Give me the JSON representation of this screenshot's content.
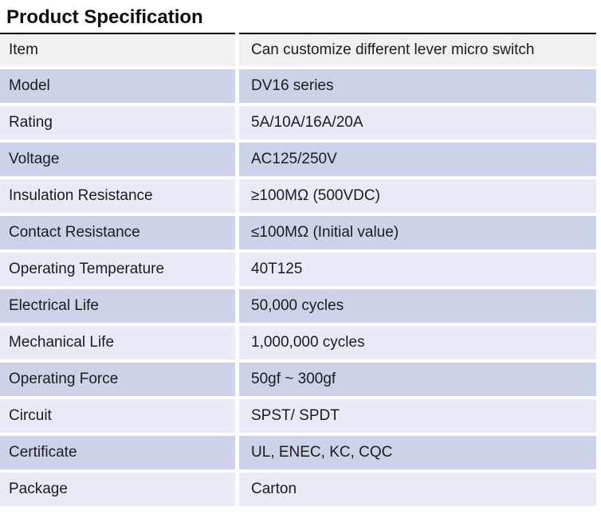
{
  "page": {
    "title": "Product Specification"
  },
  "table": {
    "colors": {
      "header_row_bg": "#f0f0f0",
      "banded_row_bg": "#ccd3e8",
      "plain_row_bg": "#e8ebf5",
      "top_rule": "#000000"
    },
    "rows": [
      {
        "label": "Item",
        "value": "Can customize different lever micro switch"
      },
      {
        "label": "Model",
        "value": "DV16 series"
      },
      {
        "label": "Rating",
        "value": "5A/10A/16A/20A"
      },
      {
        "label": "Voltage",
        "value": "AC125/250V"
      },
      {
        "label": "Insulation Resistance",
        "value": "≥100MΩ (500VDC)"
      },
      {
        "label": "Contact Resistance",
        "value": "≤100MΩ (Initial value)"
      },
      {
        "label": "Operating Temperature",
        "value": "40T125"
      },
      {
        "label": "Electrical Life",
        "value": "50,000 cycles"
      },
      {
        "label": "Mechanical Life",
        "value": "1,000,000 cycles"
      },
      {
        "label": "Operating Force",
        "value": "50gf ~ 300gf"
      },
      {
        "label": "Circuit",
        "value": "SPST/ SPDT"
      },
      {
        "label": "Certificate",
        "value": "UL, ENEC, KC, CQC"
      },
      {
        "label": "Package",
        "value": "Carton"
      }
    ]
  }
}
